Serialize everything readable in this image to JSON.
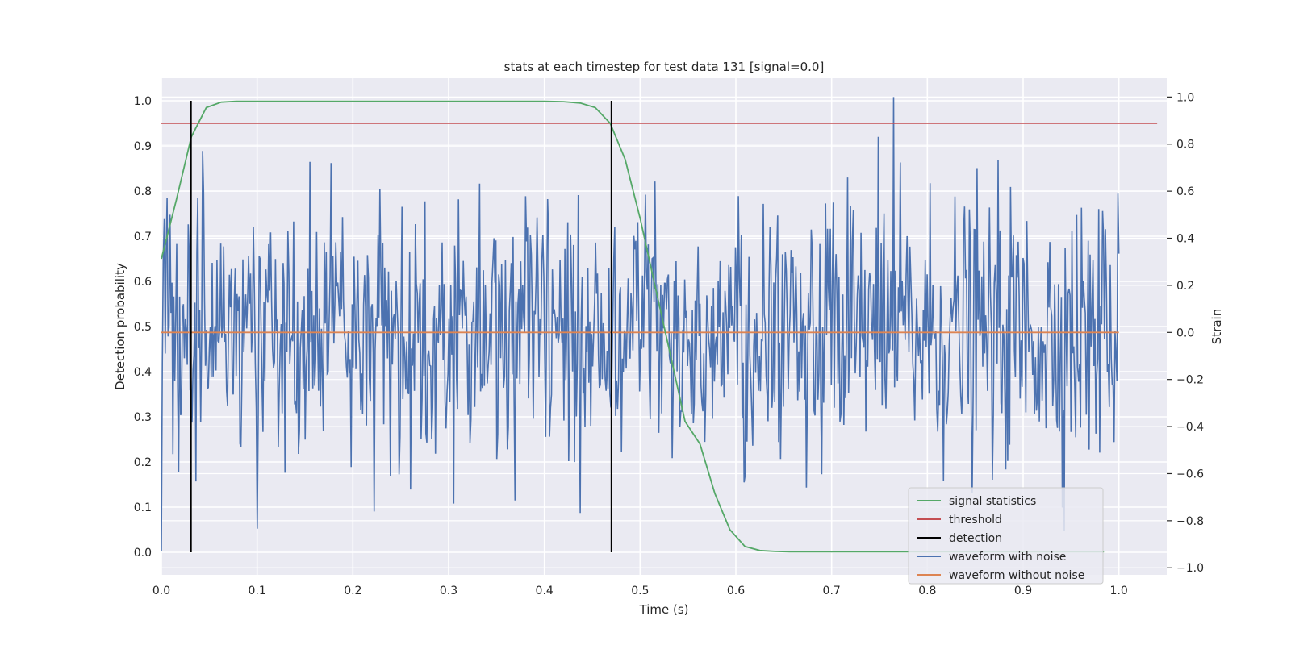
{
  "chart_data": {
    "type": "line",
    "title": "stats at each timestep for test data 131 [signal=0.0]",
    "xlabel": "Time (s)",
    "ylabel_left": "Detection probability",
    "ylabel_right": "Strain",
    "xlim": [
      0.0,
      1.05
    ],
    "ylim_left": [
      -0.05,
      1.05
    ],
    "ylim_right": [
      -1.03,
      1.08
    ],
    "x_ticks": [
      "0.0",
      "0.1",
      "0.2",
      "0.3",
      "0.4",
      "0.5",
      "0.6",
      "0.7",
      "0.8",
      "0.9",
      "1.0"
    ],
    "y_left_ticks": [
      "0.0",
      "0.1",
      "0.2",
      "0.3",
      "0.4",
      "0.5",
      "0.6",
      "0.7",
      "0.8",
      "0.9",
      "1.0"
    ],
    "y_right_ticks": [
      "−1.0",
      "−0.8",
      "−0.6",
      "−0.4",
      "−0.2",
      "0.0",
      "0.2",
      "0.4",
      "0.6",
      "0.8",
      "1.0"
    ],
    "grid": true,
    "legend_position": "lower-right",
    "background_color": "#eaeaf2",
    "series": [
      {
        "name": "signal statistics",
        "axis": "left",
        "color": "#55a868",
        "x": [
          0.0,
          0.0156,
          0.0313,
          0.0469,
          0.0625,
          0.0781,
          0.1,
          0.2,
          0.3,
          0.4,
          0.42,
          0.4375,
          0.4531,
          0.4688,
          0.4844,
          0.5,
          0.5156,
          0.5313,
          0.5469,
          0.5625,
          0.5781,
          0.5938,
          0.6094,
          0.625,
          0.6406,
          0.6563,
          0.7,
          0.8,
          0.9,
          0.9844
        ],
        "y": [
          0.65,
          0.78,
          0.92,
          0.985,
          0.997,
          0.999,
          0.999,
          0.999,
          0.999,
          0.999,
          0.998,
          0.995,
          0.985,
          0.95,
          0.87,
          0.74,
          0.59,
          0.44,
          0.29,
          0.24,
          0.13,
          0.05,
          0.013,
          0.004,
          0.002,
          0.001,
          0.001,
          0.001,
          0.001,
          0.001
        ]
      },
      {
        "name": "threshold",
        "axis": "left",
        "color": "#c44e52",
        "x": [
          0.0,
          1.04
        ],
        "y": [
          0.95,
          0.95
        ]
      },
      {
        "name": "detection",
        "axis": "left",
        "color": "#000000",
        "type": "vlines",
        "x": [
          0.031,
          0.47
        ],
        "ymin": 0.0,
        "ymax": 1.0
      },
      {
        "name": "waveform with noise",
        "axis": "right",
        "color": "#4c72b0",
        "x_start": 0.0,
        "x_end": 1.0,
        "samples": 1000,
        "y_mean": 0.0,
        "y_std": 0.28,
        "y_min_shown": -0.92,
        "y_max_shown": 1.0
      },
      {
        "name": "waveform without noise",
        "axis": "right",
        "color": "#dd8452",
        "x": [
          0.0,
          1.0
        ],
        "y": [
          0.0,
          0.0
        ]
      }
    ]
  }
}
